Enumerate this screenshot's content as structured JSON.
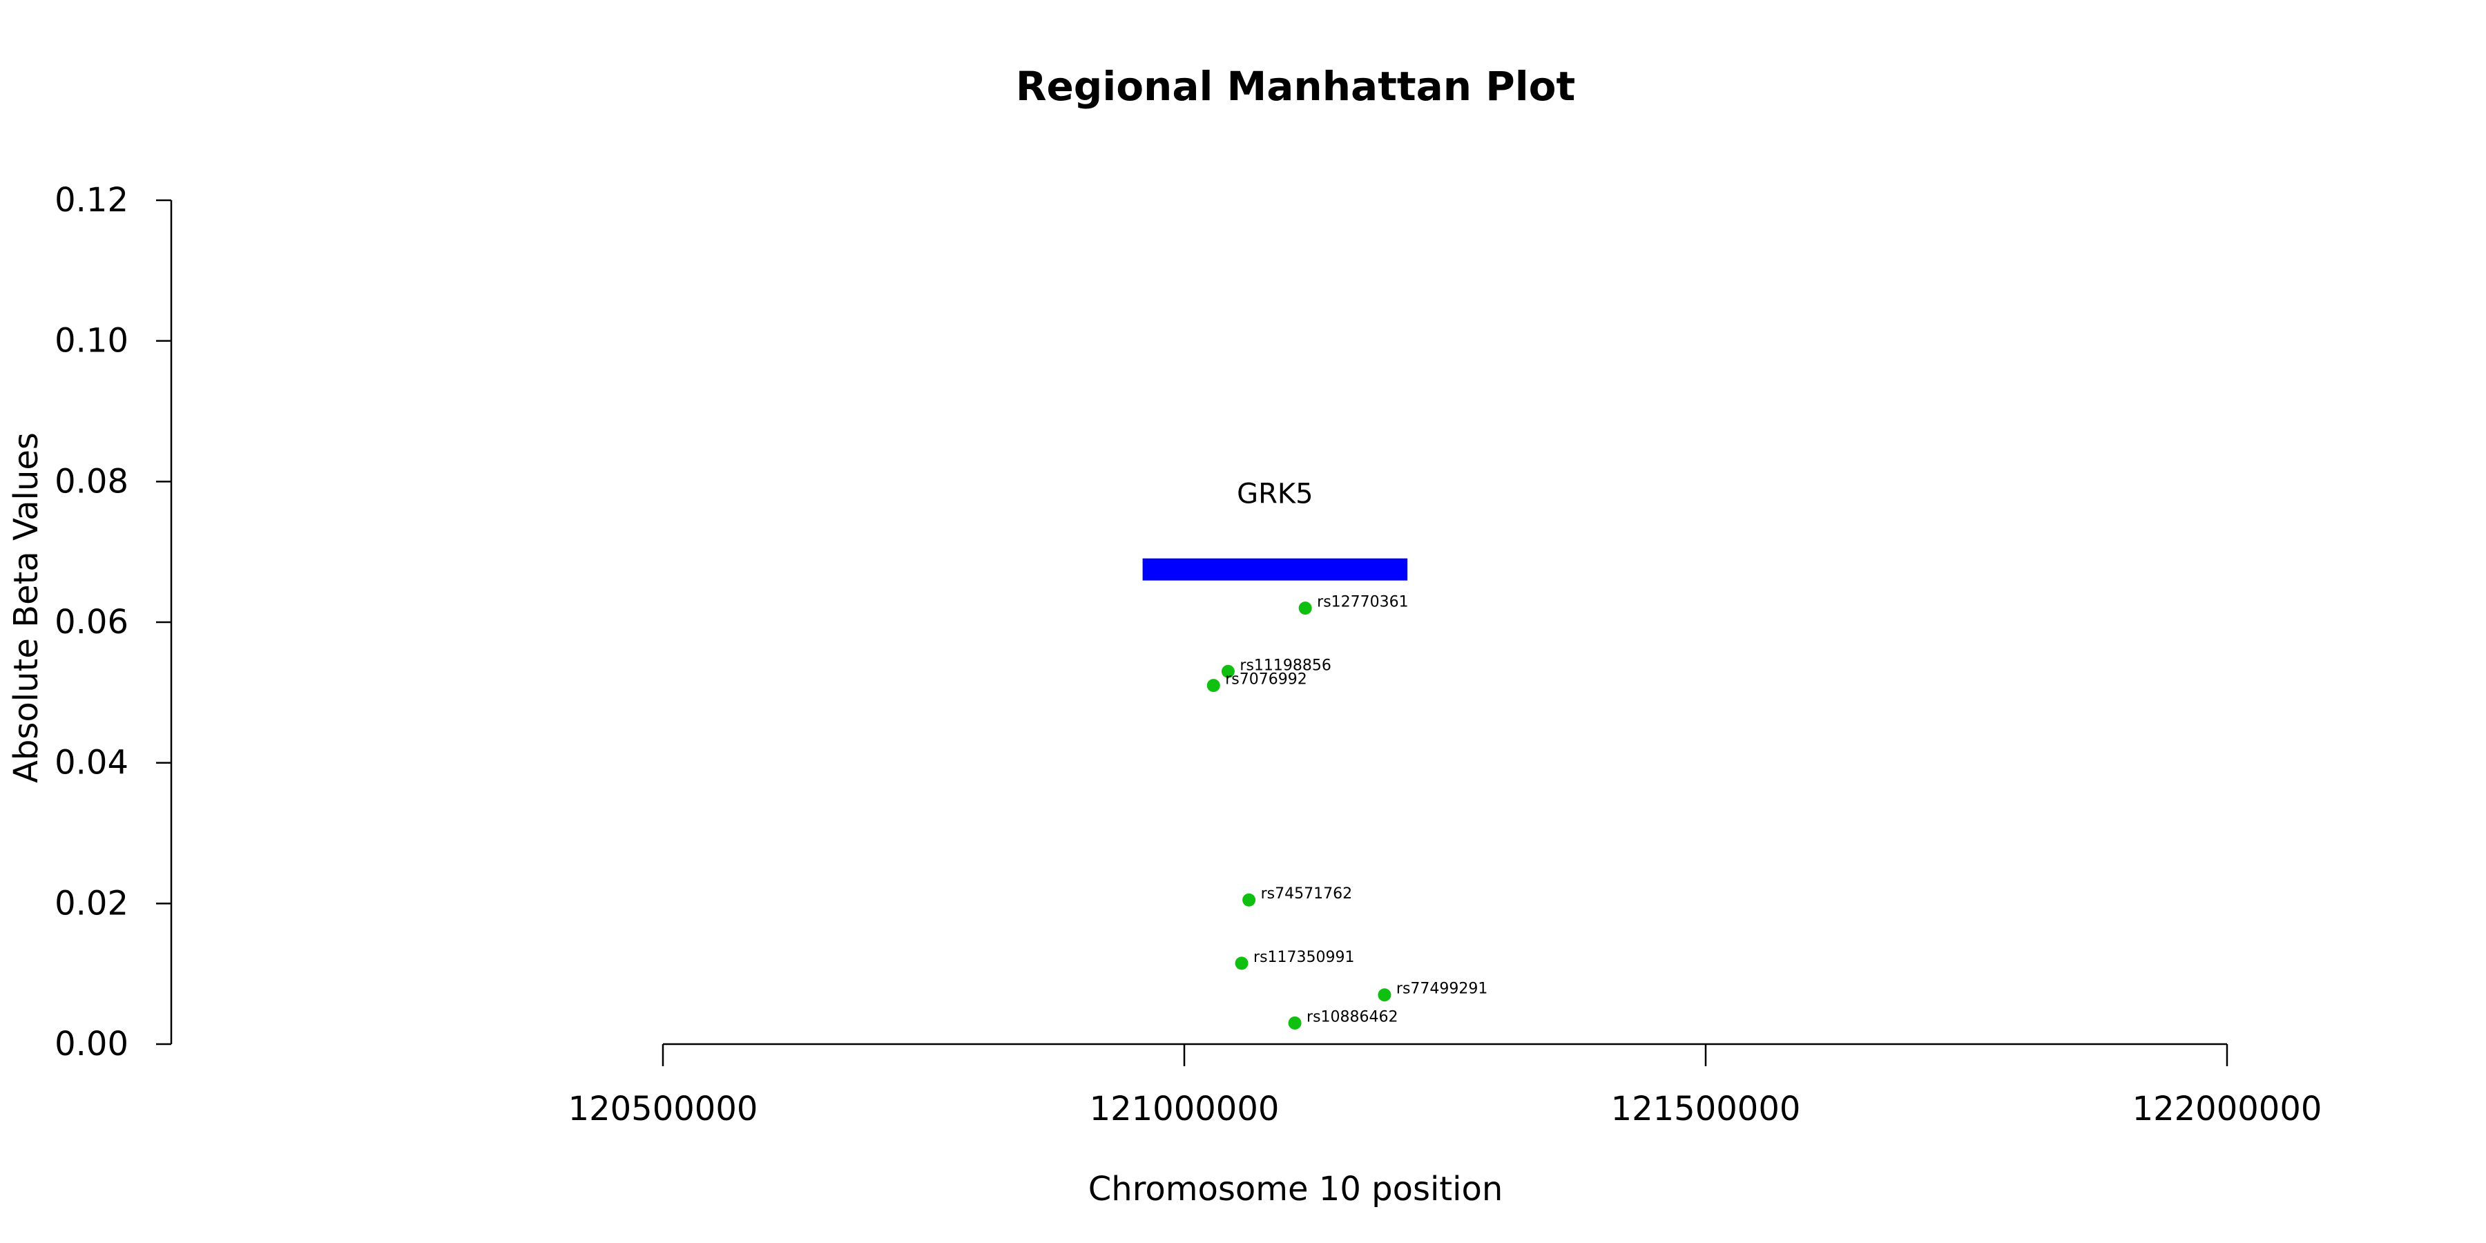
{
  "chart_data": {
    "type": "scatter",
    "title": "Regional Manhattan Plot",
    "xlabel": "Chromosome 10 position",
    "ylabel": "Absolute Beta Values",
    "xlim": [
      120470000,
      122030000
    ],
    "ylim": [
      0,
      0.12
    ],
    "x_ticks": [
      120500000,
      121000000,
      121500000,
      122000000
    ],
    "x_tick_labels": [
      "120500000",
      "121000000",
      "121500000",
      "122000000"
    ],
    "y_ticks": [
      0,
      0.02,
      0.04,
      0.06,
      0.08,
      0.1,
      0.12
    ],
    "y_tick_labels": [
      "0.00",
      "0.02",
      "0.04",
      "0.06",
      "0.08",
      "0.10",
      "0.12"
    ],
    "grid": false,
    "point_color": "#10c010",
    "points": [
      {
        "label": "rs12770361",
        "x": 121116000,
        "y": 0.062
      },
      {
        "label": "rs11198856",
        "x": 121042000,
        "y": 0.053
      },
      {
        "label": "rs7076992",
        "x": 121028000,
        "y": 0.051
      },
      {
        "label": "rs74571762",
        "x": 121062000,
        "y": 0.0205
      },
      {
        "label": "rs117350991",
        "x": 121055000,
        "y": 0.0115
      },
      {
        "label": "rs77499291",
        "x": 121192000,
        "y": 0.007
      },
      {
        "label": "rs10886462",
        "x": 121106000,
        "y": 0.003
      }
    ],
    "genes": [
      {
        "name": "GRK5",
        "start": 120960000,
        "end": 121214000,
        "y": 0.0675,
        "color": "#0000ff"
      }
    ]
  }
}
